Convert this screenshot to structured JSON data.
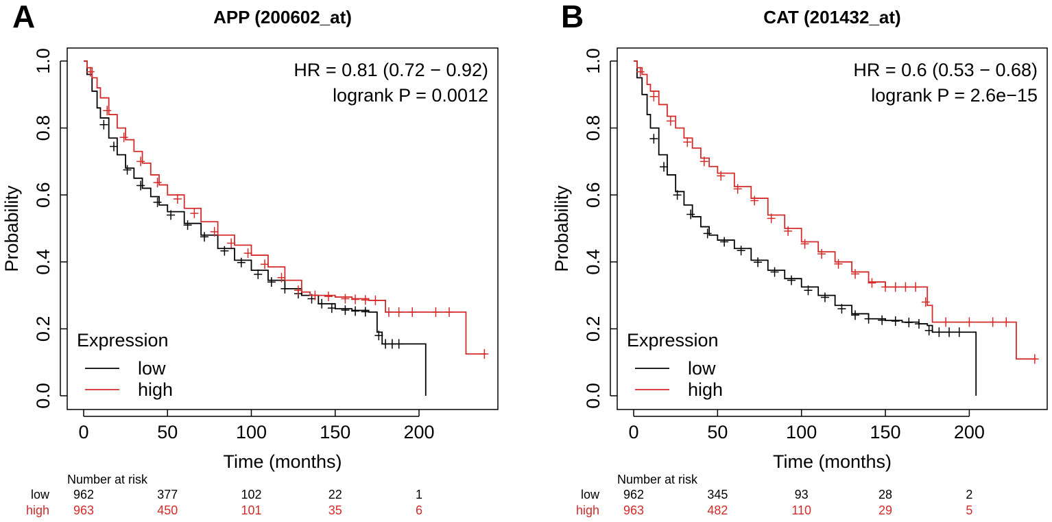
{
  "colors": {
    "low": "#000000",
    "high": "#d42a2a"
  },
  "panels": [
    {
      "letter": "A",
      "risk_header": "Number at risk",
      "chart_data": {
        "type": "line",
        "title": "APP (200602_at)",
        "xlabel": "Time (months)",
        "ylabel": "Probability",
        "xlim": [
          0,
          240
        ],
        "ylim": [
          0,
          1
        ],
        "xticks": [
          0,
          50,
          100,
          150,
          200
        ],
        "yticks": [
          0.0,
          0.2,
          0.4,
          0.6,
          0.8,
          1.0
        ],
        "xtick_labels": [
          "0",
          "50",
          "100",
          "150",
          "200"
        ],
        "ytick_labels": [
          "0.0",
          "0.2",
          "0.4",
          "0.6",
          "0.8",
          "1.0"
        ],
        "annotations": [
          "HR = 0.81 (0.72 − 0.92)",
          "logrank P = 0.0012"
        ],
        "legend": {
          "title": "Expression",
          "position": "bottom-left",
          "entries": [
            "low",
            "high"
          ]
        },
        "series": [
          {
            "name": "low",
            "x": [
              0,
              2,
              5,
              8,
              10,
              15,
              20,
              25,
              30,
              35,
              40,
              45,
              50,
              60,
              70,
              80,
              90,
              100,
              110,
              120,
              130,
              140,
              150,
              160,
              170,
              175,
              178,
              185,
              195,
              204,
              204
            ],
            "y": [
              1.0,
              0.96,
              0.91,
              0.86,
              0.83,
              0.77,
              0.72,
              0.68,
              0.65,
              0.62,
              0.595,
              0.57,
              0.55,
              0.515,
              0.48,
              0.44,
              0.405,
              0.375,
              0.345,
              0.32,
              0.3,
              0.275,
              0.26,
              0.255,
              0.25,
              0.19,
              0.155,
              0.155,
              0.155,
              0.155,
              0.0
            ],
            "censor_x": [
              12,
              18,
              26,
              34,
              44,
              52,
              62,
              72,
              84,
              94,
              104,
              112,
              120,
              128,
              136,
              142,
              148,
              156,
              162,
              168,
              176,
              180,
              184,
              188
            ],
            "censor_y": [
              0.81,
              0.745,
              0.675,
              0.628,
              0.578,
              0.54,
              0.51,
              0.475,
              0.433,
              0.398,
              0.363,
              0.34,
              0.32,
              0.305,
              0.29,
              0.275,
              0.262,
              0.256,
              0.253,
              0.251,
              0.18,
              0.155,
              0.155,
              0.155
            ]
          },
          {
            "name": "high",
            "x": [
              0,
              2,
              5,
              8,
              10,
              15,
              20,
              25,
              30,
              35,
              40,
              45,
              50,
              60,
              70,
              80,
              90,
              100,
              110,
              120,
              130,
              135,
              140,
              150,
              160,
              170,
              178,
              180,
              190,
              220,
              228,
              228,
              240
            ],
            "y": [
              1.0,
              0.98,
              0.95,
              0.92,
              0.89,
              0.84,
              0.8,
              0.765,
              0.73,
              0.695,
              0.66,
              0.63,
              0.6,
              0.56,
              0.52,
              0.48,
              0.45,
              0.42,
              0.385,
              0.345,
              0.31,
              0.3,
              0.3,
              0.295,
              0.29,
              0.285,
              0.285,
              0.25,
              0.25,
              0.25,
              0.25,
              0.125,
              0.125
            ],
            "censor_x": [
              4,
              14,
              24,
              34,
              44,
              56,
              66,
              78,
              88,
              98,
              108,
              118,
              128,
              138,
              146,
              156,
              162,
              168,
              174,
              182,
              188,
              196,
              210,
              218,
              239
            ],
            "censor_y": [
              0.968,
              0.852,
              0.772,
              0.7,
              0.637,
              0.588,
              0.545,
              0.49,
              0.456,
              0.426,
              0.393,
              0.353,
              0.315,
              0.3,
              0.297,
              0.29,
              0.288,
              0.286,
              0.285,
              0.25,
              0.25,
              0.25,
              0.25,
              0.25,
              0.125
            ]
          }
        ],
        "risk_table": {
          "times": [
            0,
            50,
            100,
            150,
            200
          ],
          "rows": [
            {
              "label": "low",
              "values": [
                "962",
                "377",
                "102",
                "22",
                "1"
              ]
            },
            {
              "label": "high",
              "values": [
                "963",
                "450",
                "101",
                "35",
                "6"
              ]
            }
          ]
        }
      }
    },
    {
      "letter": "B",
      "risk_header": "Number at risk",
      "chart_data": {
        "type": "line",
        "title": "CAT (201432_at)",
        "xlabel": "Time (months)",
        "ylabel": "Probability",
        "xlim": [
          0,
          240
        ],
        "ylim": [
          0,
          1
        ],
        "xticks": [
          0,
          50,
          100,
          150,
          200
        ],
        "yticks": [
          0.0,
          0.2,
          0.4,
          0.6,
          0.8,
          1.0
        ],
        "xtick_labels": [
          "0",
          "50",
          "100",
          "150",
          "200"
        ],
        "ytick_labels": [
          "0.0",
          "0.2",
          "0.4",
          "0.6",
          "0.8",
          "1.0"
        ],
        "annotations": [
          "HR = 0.6 (0.53 − 0.68)",
          "logrank P = 2.6e−15"
        ],
        "legend": {
          "title": "Expression",
          "position": "bottom-left",
          "entries": [
            "low",
            "high"
          ]
        },
        "series": [
          {
            "name": "low",
            "x": [
              0,
              2,
              5,
              8,
              10,
              15,
              20,
              25,
              30,
              35,
              40,
              45,
              50,
              60,
              70,
              80,
              90,
              100,
              110,
              120,
              130,
              140,
              150,
              160,
              170,
              175,
              178,
              190,
              204,
              204
            ],
            "y": [
              1.0,
              0.95,
              0.9,
              0.84,
              0.8,
              0.72,
              0.66,
              0.61,
              0.57,
              0.535,
              0.505,
              0.48,
              0.465,
              0.44,
              0.405,
              0.375,
              0.35,
              0.325,
              0.3,
              0.27,
              0.245,
              0.23,
              0.225,
              0.22,
              0.215,
              0.21,
              0.19,
              0.19,
              0.19,
              0.0
            ],
            "censor_x": [
              12,
              18,
              26,
              34,
              44,
              54,
              64,
              74,
              84,
              94,
              104,
              114,
              124,
              132,
              140,
              148,
              156,
              164,
              170,
              176,
              182,
              188,
              194
            ],
            "censor_y": [
              0.768,
              0.684,
              0.6,
              0.542,
              0.485,
              0.46,
              0.434,
              0.399,
              0.37,
              0.345,
              0.315,
              0.294,
              0.26,
              0.241,
              0.23,
              0.226,
              0.223,
              0.219,
              0.215,
              0.195,
              0.19,
              0.19,
              0.19
            ]
          },
          {
            "name": "high",
            "x": [
              0,
              2,
              5,
              8,
              10,
              15,
              20,
              25,
              30,
              35,
              40,
              45,
              50,
              60,
              70,
              80,
              90,
              100,
              110,
              120,
              130,
              140,
              150,
              160,
              170,
              175,
              178,
              180,
              200,
              228,
              228,
              240
            ],
            "y": [
              1.0,
              0.98,
              0.96,
              0.93,
              0.91,
              0.87,
              0.835,
              0.8,
              0.77,
              0.74,
              0.71,
              0.685,
              0.665,
              0.625,
              0.59,
              0.54,
              0.5,
              0.46,
              0.43,
              0.4,
              0.37,
              0.34,
              0.325,
              0.325,
              0.325,
              0.27,
              0.22,
              0.22,
              0.22,
              0.22,
              0.11,
              0.11
            ],
            "censor_x": [
              4,
              12,
              22,
              32,
              42,
              52,
              62,
              72,
              82,
              92,
              102,
              112,
              122,
              132,
              142,
              150,
              156,
              162,
              168,
              174,
              186,
              200,
              214,
              222,
              239
            ],
            "censor_y": [
              0.968,
              0.894,
              0.821,
              0.758,
              0.7,
              0.657,
              0.618,
              0.583,
              0.53,
              0.492,
              0.454,
              0.424,
              0.394,
              0.364,
              0.337,
              0.325,
              0.325,
              0.325,
              0.325,
              0.28,
              0.22,
              0.22,
              0.22,
              0.22,
              0.11
            ]
          }
        ],
        "risk_table": {
          "times": [
            0,
            50,
            100,
            150,
            200
          ],
          "rows": [
            {
              "label": "low",
              "values": [
                "962",
                "345",
                "93",
                "28",
                "2"
              ]
            },
            {
              "label": "high",
              "values": [
                "963",
                "482",
                "110",
                "29",
                "5"
              ]
            }
          ]
        }
      }
    }
  ]
}
